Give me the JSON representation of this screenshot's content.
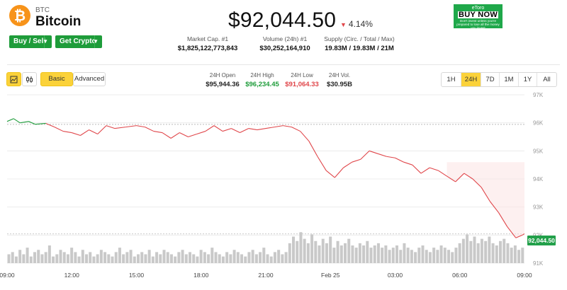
{
  "coin": {
    "symbol_glyph": "₿",
    "ticker": "BTC",
    "name": "Bitcoin",
    "brand_color": "#f7931a"
  },
  "actions": {
    "buy_sell": "Buy / Sell",
    "get_crypto": "Get Crypto"
  },
  "price": {
    "value": "$92,044.50",
    "change": "4.14%",
    "direction": "down"
  },
  "stats": {
    "market_cap_label": "Market Cap. #1",
    "market_cap": "$1,825,122,773,843",
    "volume_label": "Volume (24h) #1",
    "volume": "$30,252,164,910",
    "supply_label": "Supply (Circ. / Total / Max)",
    "supply": "19.83M / 19.83M / 21M"
  },
  "ad": {
    "brand": "eToro",
    "cta": "BUY NOW",
    "fine_print": "Don't invest unless you're prepared to lose all the money you invest"
  },
  "toolbar": {
    "chart_icon": "candlestick-icon",
    "compare_icon": "bar-icon",
    "basic": "Basic",
    "advanced": "Advanced",
    "active_mode": "Basic"
  },
  "ohlc": {
    "open_label": "24H Open",
    "open": "$95,944.36",
    "high_label": "24H High",
    "high": "$96,234.45",
    "low_label": "24H Low",
    "low": "$91,064.33",
    "vol_label": "24H Vol.",
    "vol": "$30.95B"
  },
  "timeframes": [
    "1H",
    "24H",
    "7D",
    "1M",
    "1Y",
    "All"
  ],
  "active_timeframe": "24H",
  "colors": {
    "up": "#1e9c3a",
    "down": "#e0464a",
    "accent": "#fbd23a"
  },
  "chart_data": {
    "type": "line",
    "y_ticks": [
      "97K",
      "96K",
      "95K",
      "94K",
      "93K",
      "92K",
      "91K"
    ],
    "ylim": [
      91000,
      97000
    ],
    "x_ticks": [
      "09:00",
      "12:00",
      "15:00",
      "18:00",
      "21:00",
      "Feb 25",
      "03:00",
      "06:00",
      "09:00"
    ],
    "xlim": [
      0,
      24
    ],
    "reference_price": 95944.36,
    "last_price_label": "92,044.50",
    "price_series": [
      [
        0.0,
        96050
      ],
      [
        0.3,
        96150
      ],
      [
        0.6,
        96000
      ],
      [
        1.0,
        96050
      ],
      [
        1.3,
        95950
      ],
      [
        1.8,
        95980
      ],
      [
        2.2,
        95850
      ],
      [
        2.6,
        95700
      ],
      [
        3.0,
        95650
      ],
      [
        3.4,
        95550
      ],
      [
        3.8,
        95750
      ],
      [
        4.2,
        95600
      ],
      [
        4.6,
        95900
      ],
      [
        5.0,
        95800
      ],
      [
        5.5,
        95850
      ],
      [
        6.0,
        95900
      ],
      [
        6.4,
        95850
      ],
      [
        6.8,
        95700
      ],
      [
        7.2,
        95650
      ],
      [
        7.6,
        95450
      ],
      [
        8.0,
        95650
      ],
      [
        8.4,
        95500
      ],
      [
        8.8,
        95600
      ],
      [
        9.2,
        95700
      ],
      [
        9.6,
        95900
      ],
      [
        10.0,
        95700
      ],
      [
        10.4,
        95800
      ],
      [
        10.8,
        95650
      ],
      [
        11.2,
        95800
      ],
      [
        11.6,
        95750
      ],
      [
        12.0,
        95800
      ],
      [
        12.4,
        95850
      ],
      [
        12.8,
        95900
      ],
      [
        13.2,
        95850
      ],
      [
        13.6,
        95700
      ],
      [
        14.0,
        95350
      ],
      [
        14.4,
        94800
      ],
      [
        14.8,
        94300
      ],
      [
        15.2,
        94050
      ],
      [
        15.6,
        94400
      ],
      [
        16.0,
        94600
      ],
      [
        16.4,
        94700
      ],
      [
        16.8,
        95000
      ],
      [
        17.2,
        94900
      ],
      [
        17.6,
        94800
      ],
      [
        18.0,
        94750
      ],
      [
        18.4,
        94600
      ],
      [
        18.8,
        94500
      ],
      [
        19.2,
        94200
      ],
      [
        19.6,
        94400
      ],
      [
        20.0,
        94300
      ],
      [
        20.4,
        94100
      ],
      [
        20.8,
        93900
      ],
      [
        21.2,
        94200
      ],
      [
        21.6,
        94000
      ],
      [
        22.0,
        93700
      ],
      [
        22.4,
        93200
      ],
      [
        22.8,
        92800
      ],
      [
        23.2,
        92300
      ],
      [
        23.6,
        91900
      ],
      [
        23.9,
        92000
      ],
      [
        24.0,
        92044.5
      ]
    ],
    "volume_series": [
      4,
      5,
      3,
      6,
      4,
      7,
      3,
      5,
      6,
      4,
      5,
      8,
      3,
      4,
      6,
      5,
      4,
      7,
      5,
      3,
      6,
      4,
      5,
      3,
      4,
      6,
      5,
      4,
      3,
      5,
      7,
      4,
      5,
      6,
      3,
      4,
      5,
      4,
      6,
      3,
      5,
      4,
      6,
      5,
      4,
      3,
      5,
      6,
      4,
      5,
      4,
      3,
      6,
      5,
      4,
      7,
      5,
      4,
      3,
      5,
      4,
      6,
      5,
      4,
      3,
      5,
      6,
      4,
      5,
      7,
      4,
      3,
      5,
      6,
      4,
      5,
      9,
      12,
      10,
      14,
      11,
      9,
      13,
      10,
      8,
      11,
      9,
      12,
      7,
      10,
      8,
      9,
      11,
      8,
      7,
      9,
      8,
      10,
      7,
      8,
      9,
      7,
      8,
      6,
      7,
      8,
      6,
      9,
      7,
      6,
      5,
      7,
      8,
      6,
      5,
      7,
      6,
      8,
      7,
      6,
      5,
      7,
      9,
      11,
      13,
      10,
      12,
      9,
      11,
      10,
      12,
      9,
      8,
      10,
      11,
      9,
      7,
      8,
      6,
      7
    ]
  }
}
